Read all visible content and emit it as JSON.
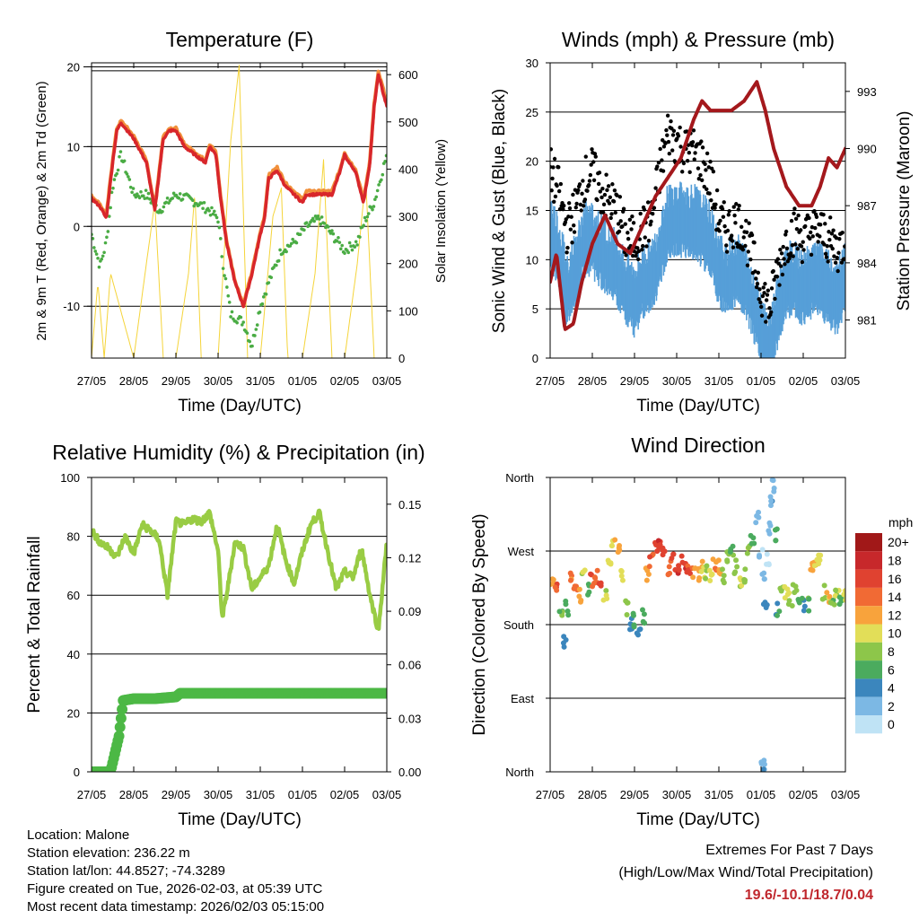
{
  "colors": {
    "temp_red": "#d8262b",
    "temp_orange": "#f1903b",
    "dewpoint_green": "#4aac44",
    "solar_yellow": "#f5d43a",
    "gust_black": "#000000",
    "wind_blue": "#569fd8",
    "pressure_maroon": "#a4181c",
    "rh_lightgreen": "#99cc44",
    "precip_green": "#4cb845",
    "extremes_red": "#c0272d"
  },
  "time_ticks": [
    "27/05",
    "28/05",
    "29/05",
    "30/05",
    "31/05",
    "01/05",
    "02/05",
    "03/05"
  ],
  "chart_data": [
    {
      "id": "temperature",
      "type": "line",
      "title": "Temperature (F)",
      "xlabel": "Time (Day/UTC)",
      "ylabel": "2m & 9m T (Red, Orange) & 2m Td (Green)",
      "ylabel_right": "Solar Insolation (Yellow)",
      "ylim": [
        -16.5,
        20.5
      ],
      "yticks": [
        -10,
        0,
        10,
        20
      ],
      "ylim_right": [
        0,
        625
      ],
      "yticks_right": [
        0,
        100,
        200,
        300,
        400,
        500,
        600
      ],
      "xlim": [
        0,
        7
      ],
      "series": [
        {
          "name": "2m T",
          "color": "#d8262b",
          "x": [
            0,
            0.2,
            0.35,
            0.5,
            0.6,
            0.7,
            0.85,
            1.0,
            1.3,
            1.5,
            1.7,
            1.85,
            2.0,
            2.2,
            2.45,
            2.7,
            2.8,
            2.95,
            3.05,
            3.2,
            3.4,
            3.6,
            3.8,
            4.0,
            4.1,
            4.2,
            4.4,
            4.6,
            4.8,
            5.0,
            5.1,
            5.3,
            5.5,
            5.7,
            5.9,
            6.0,
            6.1,
            6.25,
            6.45,
            6.6,
            6.7,
            6.8,
            6.9,
            7.0
          ],
          "y": [
            3.5,
            2.5,
            1,
            8,
            12,
            13,
            12,
            11,
            8,
            2,
            11,
            12,
            12,
            10,
            9,
            8,
            10,
            9,
            4,
            -2,
            -7,
            -10,
            -6,
            -1,
            1,
            6,
            7,
            5,
            4,
            3,
            4,
            4,
            4,
            4,
            7,
            9,
            8,
            7,
            3,
            8,
            15,
            19,
            17,
            15
          ]
        },
        {
          "name": "9m T",
          "color": "#f1903b",
          "x": [
            0,
            0.2,
            0.35,
            0.5,
            0.6,
            0.7,
            0.85,
            1.0,
            1.3,
            1.5,
            1.7,
            1.85,
            2.0,
            2.2,
            2.45,
            2.7,
            2.8,
            2.95,
            3.05,
            3.2,
            3.4,
            3.6,
            3.8,
            4.0,
            4.1,
            4.2,
            4.4,
            4.6,
            4.8,
            5.0,
            5.1,
            5.3,
            5.5,
            5.7,
            5.9,
            6.0,
            6.1,
            6.25,
            6.45,
            6.6,
            6.7,
            6.8,
            6.9,
            7.0
          ],
          "y": [
            3.8,
            2.8,
            1.3,
            8.3,
            12.3,
            13.2,
            12.3,
            11.3,
            8.3,
            2.3,
            11.3,
            12.3,
            12.3,
            10.3,
            9.3,
            8.3,
            10.3,
            9.3,
            4.2,
            -1.8,
            -6.8,
            -9.8,
            -5.8,
            -0.8,
            1.3,
            6.4,
            7.4,
            5.4,
            4.4,
            3.4,
            4.4,
            4.4,
            4.4,
            4.4,
            7.3,
            9.3,
            8.3,
            7.3,
            3.3,
            8.3,
            15.3,
            19.3,
            17.5,
            15.5
          ]
        },
        {
          "name": "2m Td",
          "color": "#4aac44",
          "x": [
            0,
            0.2,
            0.35,
            0.5,
            0.7,
            1.0,
            1.3,
            1.6,
            2.0,
            2.5,
            2.8,
            3.0,
            3.1,
            3.3,
            3.6,
            3.8,
            4.0,
            4.2,
            4.5,
            4.8,
            5.1,
            5.4,
            5.7,
            6.0,
            6.3,
            6.5,
            6.7,
            7.0
          ],
          "y": [
            -1,
            -5,
            -2,
            5,
            9,
            4,
            4,
            2,
            4,
            3,
            2,
            1,
            -4,
            -11,
            -12,
            -15,
            -10,
            -7,
            -3,
            -2,
            0,
            1,
            -1,
            -3,
            -2,
            1,
            3,
            9
          ]
        },
        {
          "name": "Solar Insolation",
          "color": "#f5d43a",
          "axis": "right",
          "x": [
            0,
            0.15,
            0.3,
            0.45,
            1.0,
            1.3,
            1.5,
            1.7,
            2.0,
            2.3,
            2.45,
            2.6,
            3.0,
            3.3,
            3.5,
            3.7,
            4.0,
            4.3,
            4.5,
            4.65,
            5.0,
            5.3,
            5.5,
            5.7,
            6.0,
            6.3,
            6.5,
            6.7,
            7.0
          ],
          "y": [
            0,
            160,
            0,
            180,
            0,
            200,
            330,
            0,
            0,
            180,
            350,
            0,
            0,
            460,
            620,
            0,
            0,
            300,
            360,
            0,
            0,
            180,
            420,
            0,
            0,
            200,
            380,
            0,
            0
          ]
        }
      ]
    },
    {
      "id": "winds",
      "type": "scatter",
      "title": "Winds (mph) & Pressure (mb)",
      "xlabel": "Time (Day/UTC)",
      "ylabel": "Sonic Wind & Gust (Blue, Black)",
      "ylabel_right": "Station Pressure (Maroon)",
      "ylim": [
        0,
        30
      ],
      "yticks": [
        0,
        5,
        10,
        15,
        20,
        25,
        30
      ],
      "ylim_right": [
        979,
        994.5
      ],
      "yticks_right": [
        981,
        984,
        987,
        990,
        993
      ],
      "xlim": [
        0,
        7
      ],
      "series": [
        {
          "name": "Gust",
          "color": "#000000",
          "x": [
            0,
            0.2,
            0.4,
            0.6,
            0.8,
            1.0,
            1.2,
            1.4,
            1.6,
            1.8,
            2.0,
            2.2,
            2.4,
            2.6,
            2.8,
            3.0,
            3.2,
            3.4,
            3.6,
            3.8,
            4.0,
            4.2,
            4.4,
            4.6,
            4.8,
            5.0,
            5.2,
            5.4,
            5.6,
            5.8,
            6.0,
            6.2,
            6.4,
            6.6,
            6.8,
            7.0
          ],
          "y": [
            19,
            17,
            13,
            15,
            18,
            19,
            17,
            16,
            15,
            12,
            12,
            13,
            14,
            19,
            23,
            22,
            21,
            21,
            20,
            18,
            14,
            13,
            14,
            13,
            10,
            7,
            5,
            9,
            12,
            13,
            12,
            13,
            13,
            12,
            11,
            12
          ]
        },
        {
          "name": "Wind",
          "color": "#569fd8",
          "x": [
            0,
            0.2,
            0.4,
            0.6,
            0.8,
            1.0,
            1.2,
            1.4,
            1.6,
            1.8,
            2.0,
            2.2,
            2.4,
            2.6,
            2.8,
            3.0,
            3.2,
            3.4,
            3.6,
            3.8,
            4.0,
            4.2,
            4.4,
            4.6,
            4.8,
            5.0,
            5.2,
            5.4,
            5.6,
            5.8,
            6.0,
            6.2,
            6.4,
            6.6,
            6.8,
            7.0
          ],
          "y": [
            14,
            12,
            8,
            10,
            13,
            13,
            12,
            11,
            10,
            8,
            7,
            9,
            9,
            12,
            15,
            15,
            15,
            15,
            14,
            13,
            10,
            9,
            10,
            9,
            7,
            4,
            2,
            6,
            9,
            9,
            8,
            9,
            9,
            8,
            7,
            9
          ]
        },
        {
          "name": "Pressure",
          "color": "#a4181c",
          "axis": "right",
          "x": [
            0,
            0.15,
            0.35,
            0.55,
            0.75,
            1.0,
            1.3,
            1.6,
            1.9,
            2.2,
            2.5,
            2.8,
            3.1,
            3.4,
            3.6,
            3.8,
            4.0,
            4.3,
            4.6,
            4.9,
            5.1,
            5.3,
            5.6,
            5.9,
            6.2,
            6.4,
            6.6,
            6.8,
            7.0
          ],
          "y": [
            983,
            984.5,
            980.5,
            980.8,
            983,
            985,
            986.5,
            985,
            984.5,
            986,
            987.5,
            988.5,
            989.5,
            991.5,
            992.5,
            992,
            992,
            992,
            992.5,
            993.5,
            992,
            990,
            988,
            987,
            987,
            988,
            989.5,
            989,
            990
          ]
        }
      ]
    },
    {
      "id": "humidity",
      "type": "line",
      "title": "Relative Humidity (%) & Precipitation (in)",
      "xlabel": "Time (Day/UTC)",
      "ylabel": "Percent & Total Rainfall",
      "ylim": [
        0,
        100
      ],
      "yticks": [
        0,
        20,
        40,
        60,
        80,
        100
      ],
      "ylim_right": [
        0,
        0.165
      ],
      "yticks_right": [
        "0.00",
        "0.03",
        "0.06",
        "0.09",
        "0.12",
        "0.15"
      ],
      "xlim": [
        0,
        7
      ],
      "series": [
        {
          "name": "Relative Humidity",
          "color": "#99cc44",
          "x": [
            0,
            0.2,
            0.4,
            0.6,
            0.8,
            1.0,
            1.2,
            1.4,
            1.6,
            1.8,
            2.0,
            2.2,
            2.4,
            2.6,
            2.8,
            3.0,
            3.1,
            3.2,
            3.4,
            3.6,
            3.8,
            4.0,
            4.2,
            4.4,
            4.6,
            4.8,
            5.0,
            5.2,
            5.4,
            5.6,
            5.8,
            6.0,
            6.2,
            6.4,
            6.6,
            6.8,
            7.0
          ],
          "y": [
            82,
            78,
            76,
            73,
            80,
            74,
            84,
            82,
            79,
            60,
            85,
            84,
            86,
            85,
            88,
            75,
            52,
            60,
            78,
            76,
            62,
            66,
            70,
            84,
            72,
            64,
            75,
            84,
            88,
            75,
            62,
            68,
            66,
            76,
            60,
            48,
            78
          ]
        },
        {
          "name": "Total Precipitation",
          "color": "#4cb845",
          "axis": "right",
          "x": [
            0,
            0.3,
            0.45,
            0.55,
            0.65,
            0.75,
            1.0,
            1.5,
            2.0,
            2.1,
            3.0,
            4.0,
            5.0,
            6.0,
            7.0
          ],
          "y": [
            0,
            0,
            0,
            0.01,
            0.02,
            0.04,
            0.041,
            0.041,
            0.042,
            0.044,
            0.044,
            0.044,
            0.044,
            0.044,
            0.044
          ]
        }
      ]
    },
    {
      "id": "wind-direction",
      "type": "scatter",
      "title": "Wind Direction",
      "xlabel": "Time (Day/UTC)",
      "ylabel": "Direction (Colored By Speed)",
      "yticks": [
        "North",
        "East",
        "South",
        "West",
        "North"
      ],
      "ylim": [
        0,
        360
      ],
      "xlim": [
        0,
        7
      ],
      "colorbar_label": "mph",
      "colorbar_ticks": [
        "20+",
        "18",
        "16",
        "14",
        "12",
        "10",
        "8",
        "6",
        "4",
        "2",
        "0"
      ],
      "colorbar_colors": [
        "#a11818",
        "#c7282b",
        "#e04230",
        "#f16a34",
        "#f8a33c",
        "#e2de58",
        "#8dc64a",
        "#4bab5e",
        "#3b86bd",
        "#7cb8e4",
        "#bfe3f5"
      ],
      "points": {
        "x": [
          0.05,
          0.15,
          0.25,
          0.35,
          0.4,
          0.5,
          0.6,
          0.7,
          0.8,
          0.9,
          1.0,
          1.1,
          1.2,
          1.3,
          1.4,
          1.5,
          1.6,
          1.7,
          1.8,
          1.9,
          2.0,
          2.1,
          2.2,
          2.3,
          2.4,
          2.5,
          2.6,
          2.7,
          2.8,
          2.9,
          3.0,
          3.1,
          3.2,
          3.3,
          3.4,
          3.5,
          3.6,
          3.7,
          3.8,
          3.9,
          4.0,
          4.1,
          4.2,
          4.3,
          4.4,
          4.5,
          4.6,
          4.7,
          4.8,
          4.9,
          5.0,
          5.05,
          5.1,
          5.15,
          5.2,
          5.25,
          5.3,
          5.35,
          5.4,
          5.5,
          5.6,
          5.7,
          5.8,
          5.9,
          6.0,
          6.1,
          6.2,
          6.3,
          6.4,
          6.5,
          6.6,
          6.7,
          6.8,
          6.9,
          7.0,
          5.05,
          5.1
        ],
        "y": [
          235,
          225,
          190,
          160,
          200,
          240,
          230,
          215,
          250,
          225,
          235,
          240,
          225,
          215,
          260,
          275,
          270,
          240,
          200,
          180,
          185,
          175,
          190,
          240,
          260,
          275,
          280,
          270,
          250,
          260,
          250,
          255,
          250,
          250,
          245,
          240,
          250,
          245,
          240,
          255,
          250,
          240,
          260,
          270,
          250,
          230,
          240,
          270,
          280,
          310,
          270,
          240,
          200,
          260,
          300,
          330,
          350,
          290,
          200,
          230,
          220,
          210,
          225,
          215,
          205,
          205,
          250,
          255,
          260,
          220,
          215,
          210,
          215,
          210,
          215,
          10,
          0
        ],
        "speed": [
          12,
          16,
          8,
          5,
          7,
          14,
          15,
          13,
          10,
          7,
          16,
          15,
          17,
          10,
          11,
          12,
          14,
          12,
          8,
          5,
          6,
          5,
          7,
          13,
          16,
          17,
          18,
          17,
          15,
          16,
          18,
          17,
          18,
          16,
          14,
          13,
          12,
          10,
          11,
          14,
          13,
          9,
          10,
          8,
          9,
          10,
          9,
          10,
          7,
          4,
          2,
          3,
          5,
          1,
          3,
          4,
          3,
          7,
          6,
          9,
          11,
          10,
          9,
          7,
          6,
          8,
          13,
          12,
          11,
          9,
          12,
          8,
          10,
          7,
          11,
          2,
          4
        ]
      }
    }
  ],
  "footer": {
    "location": "Location: Malone",
    "elevation": "Station elevation: 236.22 m",
    "latlon": "Station lat/lon: 44.8527; -74.3289",
    "created": "Figure created on Tue, 2026-02-03, at 05:39 UTC",
    "recent": "Most recent data timestamp: 2026/02/03 05:15:00",
    "extremes_title": "Extremes For Past 7 Days",
    "extremes_subtitle": "(High/Low/Max Wind/Total Precipitation)",
    "extremes_values": "19.6/-10.1/18.7/0.04"
  }
}
